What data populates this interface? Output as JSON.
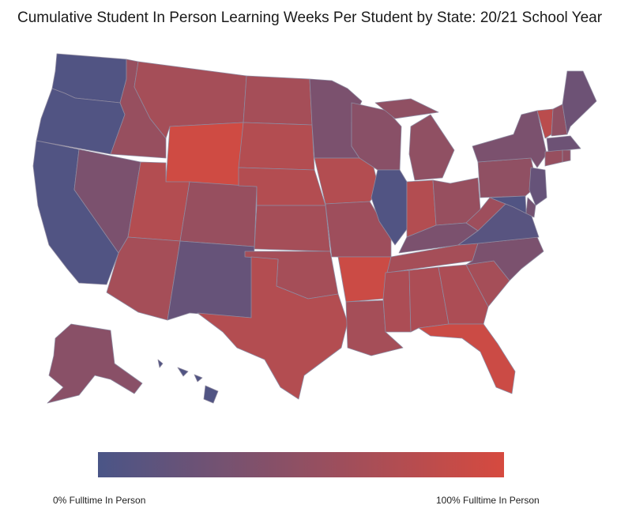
{
  "title": "Cumulative Student In Person Learning Weeks Per Student by State: 20/21 School Year",
  "legend": {
    "min_label": "0% Fulltime In Person",
    "max_label": "100% Fulltime In Person",
    "color_low": "#4a5587",
    "color_high": "#d64a3f"
  },
  "map_data": {
    "type": "choropleth",
    "region": "United States",
    "scale": "0 = 0% fulltime in person, 1 = 100% fulltime in person",
    "values": {
      "WA": 0.05,
      "OR": 0.05,
      "CA": 0.05,
      "NV": 0.35,
      "ID": 0.55,
      "MT": 0.65,
      "WY": 0.95,
      "UT": 0.75,
      "AZ": 0.65,
      "CO": 0.55,
      "NM": 0.2,
      "ND": 0.65,
      "SD": 0.75,
      "NE": 0.75,
      "KS": 0.65,
      "OK": 0.65,
      "TX": 0.75,
      "MN": 0.35,
      "IA": 0.75,
      "MO": 0.6,
      "AR": 0.92,
      "LA": 0.65,
      "WI": 0.45,
      "IL": 0.05,
      "MI": 0.5,
      "IN": 0.75,
      "OH": 0.55,
      "KY": 0.35,
      "TN": 0.65,
      "MS": 0.7,
      "AL": 0.7,
      "GA": 0.7,
      "FL": 0.92,
      "SC": 0.65,
      "NC": 0.35,
      "VA": 0.1,
      "WV": 0.6,
      "PA": 0.5,
      "NY": 0.35,
      "VT": 0.8,
      "NH": 0.5,
      "ME": 0.25,
      "MA": 0.25,
      "CT": 0.55,
      "RI": 0.5,
      "NJ": 0.2,
      "DE": 0.3,
      "MD": 0.05,
      "AK": 0.45,
      "HI": 0.05
    }
  }
}
